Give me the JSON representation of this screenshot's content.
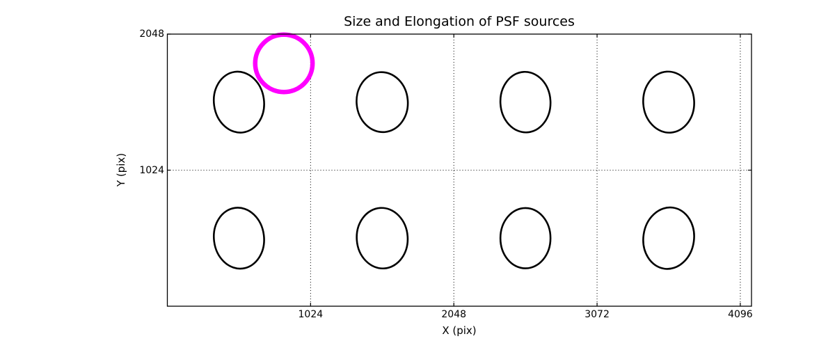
{
  "chart_data": {
    "type": "scatter",
    "title": "Size and Elongation of PSF sources",
    "xlabel": "X (pix)",
    "ylabel": "Y (pix)",
    "xlim": [
      0,
      4176
    ],
    "ylim": [
      0,
      2048
    ],
    "xticks": [
      1024,
      2048,
      3072,
      4096
    ],
    "yticks": [
      1024,
      2048
    ],
    "grid": {
      "enabled": true,
      "style": "dotted",
      "color": "#000000"
    },
    "frame_color": "#000000",
    "ellipse_color": "#000000",
    "psf_ellipses": [
      {
        "x": 512,
        "y": 1536,
        "semi_x": 179,
        "semi_y": 230,
        "tilt_deg": -8
      },
      {
        "x": 1536,
        "y": 1536,
        "semi_x": 183,
        "semi_y": 226,
        "tilt_deg": -5
      },
      {
        "x": 2560,
        "y": 1536,
        "semi_x": 179,
        "semi_y": 228,
        "tilt_deg": -3
      },
      {
        "x": 3584,
        "y": 1536,
        "semi_x": 182,
        "semi_y": 230,
        "tilt_deg": -4
      },
      {
        "x": 512,
        "y": 512,
        "semi_x": 179,
        "semi_y": 230,
        "tilt_deg": -7
      },
      {
        "x": 1536,
        "y": 512,
        "semi_x": 182,
        "semi_y": 228,
        "tilt_deg": -4
      },
      {
        "x": 2560,
        "y": 512,
        "semi_x": 179,
        "semi_y": 227,
        "tilt_deg": 0
      },
      {
        "x": 3584,
        "y": 512,
        "semi_x": 181,
        "semi_y": 232,
        "tilt_deg": 8
      }
    ],
    "reference_circle": {
      "x": 833,
      "y": 1828,
      "radius": 205,
      "color": "#ff00ff"
    }
  }
}
